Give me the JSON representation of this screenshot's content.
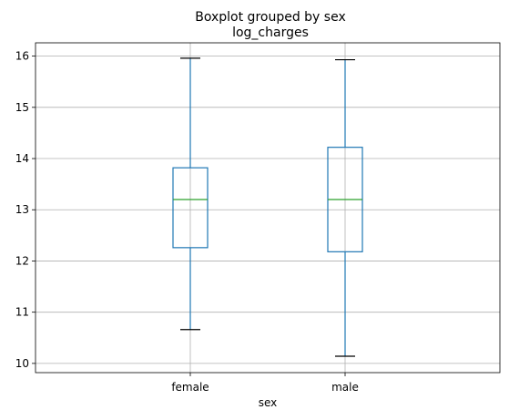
{
  "chart_data": {
    "type": "boxplot",
    "title": "Boxplot grouped by sex",
    "subtitle": "log_charges",
    "xlabel": "sex",
    "ylabel": "",
    "categories": [
      "female",
      "male"
    ],
    "ylim": [
      9.82,
      16.26
    ],
    "yticks": [
      "10",
      "11",
      "12",
      "13",
      "14",
      "15",
      "16"
    ],
    "grid": true,
    "legend": "none",
    "boxes": [
      {
        "category": "female",
        "whisker_low": 10.66,
        "q1": 12.26,
        "median": 13.2,
        "q3": 13.82,
        "whisker_high": 15.96
      },
      {
        "category": "male",
        "whisker_low": 10.14,
        "q1": 12.18,
        "median": 13.2,
        "q3": 14.22,
        "whisker_high": 15.93
      }
    ],
    "colors": {
      "box": "#1f77b4",
      "whisker": "#1f77b4",
      "cap": "#000000",
      "median": "#2ca02c",
      "grid": "#b0b0b0"
    }
  }
}
